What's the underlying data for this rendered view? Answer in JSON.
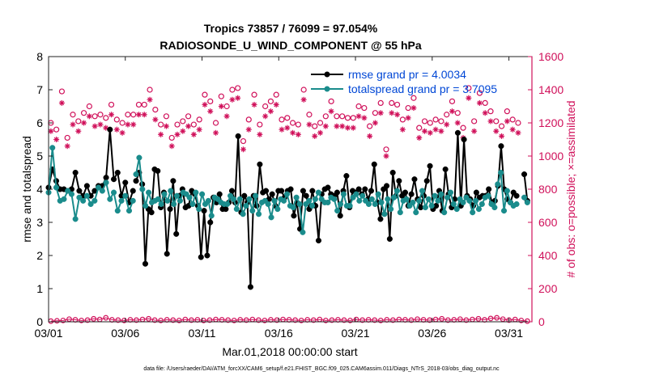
{
  "chart_data": {
    "type": "line",
    "title_line1": "Tropics 73857 / 76099 = 97.054%",
    "title_line2": "RADIOSONDE_U_WIND_COMPONENT @ 55 hPa",
    "xlabel": "Mar.01,2018 00:00:00 start",
    "ylabel_left": "rmse and totalspread",
    "ylabel_right": "# of obs: o=possible; ×=assimilated",
    "footnote": "data file: /Users/raeder/DAI/ATM_forcXX/CAM6_setup/f.e21.FHIST_BGC.f09_025.CAM6assim.011/Diags_NTrS_2018-03/obs_diag_output.nc",
    "xlim": [
      0,
      31.5
    ],
    "ylim_left": [
      0,
      8
    ],
    "ylim_right": [
      0,
      1600
    ],
    "x_ticks": [
      0,
      5,
      10,
      15,
      20,
      25,
      30
    ],
    "x_tick_labels": [
      "03/01",
      "03/06",
      "03/11",
      "03/16",
      "03/21",
      "03/26",
      "03/31"
    ],
    "y_ticks_left": [
      0,
      1,
      2,
      3,
      4,
      5,
      6,
      7,
      8
    ],
    "y_ticks_right": [
      0,
      200,
      400,
      600,
      800,
      1000,
      1200,
      1400,
      1600
    ],
    "legend": [
      {
        "label": "rmse grand pr = 4.0034",
        "color": "#000000"
      },
      {
        "label": "totalspread grand pr = 3.7095",
        "color": "#1a8c8c"
      }
    ],
    "colors": {
      "rmse": "#000000",
      "spread": "#1a8c8c",
      "obs": "#d0105a",
      "legend_text": "#0047d6",
      "right_axis": "#d0105a"
    },
    "series": [
      {
        "name": "rmse",
        "segments": [
          [
            4.05,
            4.6,
            4.25,
            4.0,
            4.0,
            3.95,
            4.0,
            4.5,
            3.95,
            3.8,
            4.1,
            3.8,
            3.95,
            4.1,
            4.1,
            4.35,
            5.8,
            4.3,
            4.5,
            3.8,
            4.2,
            3.6,
            3.95
          ],
          [
            4.25,
            4.5,
            4.15,
            1.75,
            3.4,
            3.3,
            4.6,
            4.55,
            3.45,
            3.9,
            2.05,
            3.4,
            4.25,
            2.65,
            3.8,
            4.0,
            3.45,
            3.5,
            3.95,
            3.85,
            3.5,
            1.95,
            3.35,
            2.0,
            3.0,
            3.75,
            3.6,
            3.85,
            3.4,
            3.4,
            3.6,
            3.95,
            3.6,
            5.6,
            3.3,
            3.8,
            3.6,
            1.05,
            3.8,
            3.5,
            4.75,
            3.9,
            3.95,
            3.7,
            3.85,
            3.5,
            3.95,
            3.95,
            3.75,
            3.95,
            4.0,
            3.2,
            3.6,
            2.8,
            3.95,
            3.8,
            3.4,
            3.95,
            3.5,
            2.45,
            3.85,
            4.0,
            4.05,
            3.85,
            3.8,
            3.9,
            3.2,
            3.95,
            4.4,
            3.45,
            3.95,
            3.9,
            4.0,
            3.85,
            4.0,
            3.7,
            3.95,
            4.75,
            3.6,
            3.1,
            4.0,
            4.1,
            2.5,
            4.5,
            3.8,
            4.25,
            3.8,
            3.9,
            3.5,
            3.85,
            4.3,
            3.7,
            3.45,
            3.8,
            4.25,
            4.7,
            3.4,
            3.5,
            3.95,
            3.35,
            4.6,
            3.85,
            3.45,
            3.7,
            5.7,
            3.5,
            5.5,
            3.8,
            3.7,
            3.5,
            3.9,
            3.75,
            3.8,
            3.8,
            4.0,
            3.6,
            3.65,
            4.1,
            5.3,
            4.0,
            3.7,
            3.6,
            3.9,
            3.8
          ],
          [
            4.45,
            3.65
          ]
        ]
      },
      {
        "name": "totalspread",
        "segments": [
          [
            3.9,
            5.25,
            4.05,
            3.65,
            3.7,
            3.95,
            3.85,
            3.1,
            3.75,
            3.65,
            3.8,
            3.55,
            3.65,
            4.05,
            3.95,
            4.2,
            3.7,
            3.9,
            3.35,
            3.65,
            3.8,
            3.35,
            3.65
          ],
          [
            4.45,
            4.95,
            4.0,
            3.5,
            3.9,
            3.6,
            3.65,
            3.7,
            3.55,
            3.85,
            3.65,
            3.95,
            3.55,
            3.8,
            3.65,
            3.9,
            3.85,
            3.75,
            3.55,
            3.9,
            3.4,
            3.85,
            3.55,
            3.65,
            3.2,
            3.75,
            3.7,
            3.6,
            3.55,
            3.55,
            3.8,
            3.7,
            3.4,
            3.7,
            3.25,
            3.5,
            3.7,
            3.35,
            3.8,
            3.25,
            3.6,
            3.65,
            3.55,
            3.15,
            3.65,
            3.4,
            3.7,
            3.65,
            3.85,
            3.5,
            3.45,
            3.75,
            3.55,
            2.7,
            3.55,
            3.65,
            3.5,
            3.7,
            3.9,
            3.7,
            3.6,
            3.6,
            3.75,
            3.7,
            3.35,
            3.55,
            3.85,
            3.5,
            3.5,
            3.75,
            3.85,
            3.65,
            3.8,
            3.65,
            3.55,
            3.7,
            3.55,
            3.85,
            3.6,
            3.25,
            3.7,
            3.4,
            3.75,
            3.95,
            3.3,
            3.65,
            3.7,
            3.5,
            3.6,
            3.3,
            3.65,
            3.95,
            3.45,
            3.7,
            3.5,
            3.8,
            3.65,
            3.85,
            3.3,
            3.75,
            3.9,
            3.55,
            3.4,
            3.7,
            3.6,
            3.75,
            3.65,
            3.3,
            3.65,
            3.4,
            3.55,
            3.75,
            3.8,
            3.55,
            3.45,
            4.15,
            4.5,
            3.35,
            3.95,
            3.6,
            3.5,
            3.55
          ],
          [
            3.75,
            3.6
          ]
        ]
      }
    ],
    "obs_possible": [
      1200,
      1160,
      1390,
      1110,
      1250,
      1210,
      1260,
      1300,
      1240,
      1250,
      1230,
      1310,
      1220,
      1200,
      1250,
      1250,
      1310,
      1310,
      1400,
      1280,
      1190,
      1240,
      1110,
      1190,
      1210,
      1240,
      1190,
      1220,
      1370,
      1330,
      1200,
      1360,
      1300,
      1400,
      1410,
      1090,
      1220,
      1370,
      1190,
      1300,
      1330,
      1370,
      1220,
      1230,
      1200,
      1190,
      1400,
      1250,
      1180,
      1200,
      1240,
      1330,
      1240,
      1240,
      1230,
      1230,
      1300,
      1290,
      1180,
      1260,
      1320,
      1040,
      1320,
      1310,
      1220,
      1290,
      1350,
      1170,
      1210,
      1200,
      1220,
      1210,
      1250,
      1330,
      1260,
      1170,
      1410,
      1210,
      1380,
      1320,
      1270,
      1210,
      1180,
      1270,
      1220,
      1200
    ],
    "obs_assimilated": [
      1150,
      1100,
      1320,
      1060,
      1190,
      1150,
      1200,
      1240,
      1180,
      1190,
      1170,
      1250,
      1160,
      1140,
      1190,
      1190,
      1250,
      1250,
      1340,
      1220,
      1130,
      1180,
      1060,
      1130,
      1150,
      1180,
      1130,
      1160,
      1310,
      1270,
      1140,
      1300,
      1240,
      1340,
      1350,
      1040,
      1160,
      1310,
      1130,
      1240,
      1270,
      1310,
      1160,
      1170,
      1140,
      1130,
      1340,
      1190,
      1120,
      1140,
      1180,
      1270,
      1180,
      1180,
      1170,
      1170,
      1240,
      1230,
      1120,
      1200,
      1260,
      1000,
      1260,
      1250,
      1160,
      1230,
      1290,
      1110,
      1150,
      1140,
      1160,
      1150,
      1190,
      1270,
      1200,
      1110,
      1350,
      1150,
      1320,
      1260,
      1210,
      1150,
      1120,
      1210,
      1160,
      1140
    ],
    "obs_near_zero_left": [
      0.02,
      0.03,
      0.04,
      0.08,
      0.06,
      0.04,
      0.05,
      0.09,
      0.07,
      0.12,
      0.06,
      0.05,
      0.04,
      0.06,
      0.05,
      0.07,
      0.09,
      0.05,
      0.04,
      0.06,
      0.05,
      0.04,
      0.07,
      0.05,
      0.06,
      0.04,
      0.05,
      0.07,
      0.06,
      0.05,
      0.04,
      0.06,
      0.05,
      0.07,
      0.05,
      0.04,
      0.06,
      0.05,
      0.07,
      0.06,
      0.05,
      0.04,
      0.06,
      0.05,
      0.07,
      0.04,
      0.05,
      0.06,
      0.05,
      0.04,
      0.07,
      0.05,
      0.06,
      0.05,
      0.04,
      0.06,
      0.05,
      0.07,
      0.06,
      0.05,
      0.08,
      0.06,
      0.05,
      0.07,
      0.09,
      0.05,
      0.06,
      0.08,
      0.05,
      0.07,
      0.09,
      0.06,
      0.1,
      0.12,
      0.08,
      0.05,
      0.07,
      0.04,
      0.02
    ]
  }
}
